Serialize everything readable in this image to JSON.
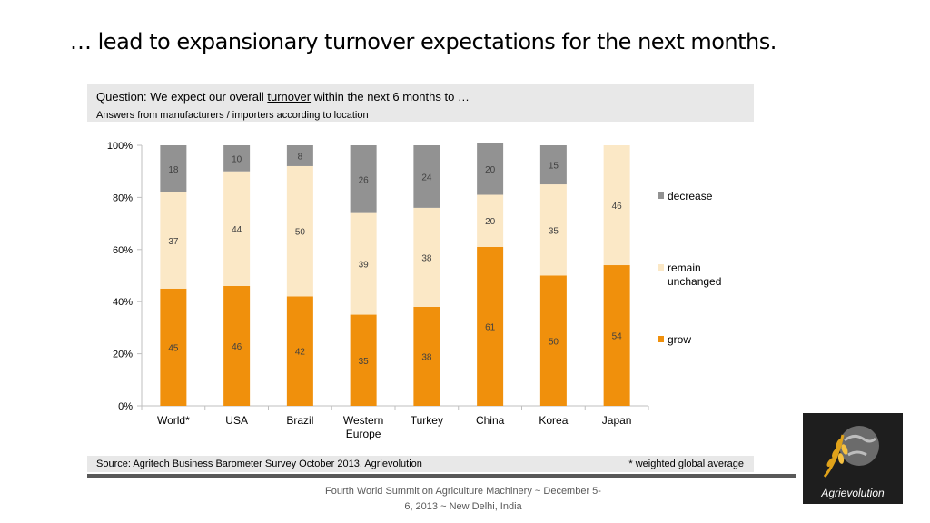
{
  "slide": {
    "title": "… lead to expansionary turnover expectations for the next months."
  },
  "question": {
    "prefix": "Question: We expect our overall ",
    "keyword": "turnover",
    "suffix": " within the next 6 months to …",
    "subtitle": "Answers from manufacturers / importers according to location"
  },
  "chart_data": {
    "type": "bar",
    "stacked": true,
    "categories": [
      "World*",
      "USA",
      "Brazil",
      "Western Europe",
      "Turkey",
      "China",
      "Korea",
      "Japan"
    ],
    "series": [
      {
        "name": "grow",
        "color": "#f0900c",
        "values": [
          45,
          46,
          42,
          35,
          38,
          61,
          50,
          54
        ]
      },
      {
        "name": "remain unchanged",
        "color": "#fbe8c6",
        "values": [
          37,
          44,
          50,
          39,
          38,
          20,
          35,
          46
        ]
      },
      {
        "name": "decrease",
        "color": "#929292",
        "values": [
          18,
          10,
          8,
          26,
          24,
          20,
          15,
          null
        ]
      }
    ],
    "y_ticks": [
      "0%",
      "20%",
      "40%",
      "60%",
      "80%",
      "100%"
    ],
    "ylim": [
      0,
      100
    ],
    "legend_position": "right",
    "grid": false
  },
  "source": {
    "text": "Source: Agritech Business Barometer Survey October 2013, Agrievolution",
    "note": "* weighted global average"
  },
  "footer": {
    "line1": "Fourth World Summit on Agriculture Machinery ~ December 5-",
    "line2": "6, 2013 ~ New Delhi, India"
  },
  "logo": {
    "text": "Agrievolution",
    "icon": "wheat-globe-icon"
  }
}
